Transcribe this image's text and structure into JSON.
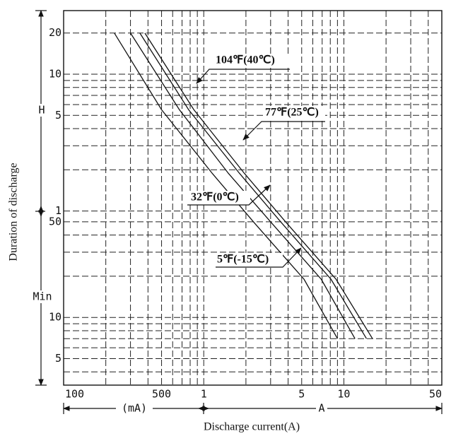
{
  "chart_data": {
    "type": "line",
    "x_label": "Discharge current(A)",
    "y_label": "Duration of discharge",
    "log_x": true,
    "log_y": true,
    "grid": true,
    "xlim": [
      0.1,
      50
    ],
    "ylim": [
      3.2,
      1750
    ],
    "xticks": [
      {
        "value": 0.1,
        "label": "100"
      },
      {
        "value": 0.5,
        "label": "500"
      },
      1,
      5,
      10,
      50
    ],
    "yticks": [
      {
        "value": 1200,
        "label": "20"
      },
      {
        "value": 600,
        "label": "10"
      },
      {
        "value": 300,
        "label": "5"
      },
      {
        "value": 60,
        "label": "1"
      },
      50,
      10,
      5
    ],
    "xgrid": [
      0.2,
      0.3,
      0.4,
      0.6,
      0.7,
      0.8,
      0.9,
      2,
      3,
      4,
      6,
      7,
      8,
      9,
      20,
      30,
      40
    ],
    "ygrid": [
      540,
      480,
      420,
      360,
      240,
      180,
      120,
      40,
      30,
      20,
      9,
      8,
      7,
      6,
      4
    ],
    "annotations": {
      "hours": "H",
      "minutes": "Min",
      "milliamps": "(mA)",
      "amps": "A"
    },
    "series": [
      {
        "name": "5℉(-15℃)",
        "color": "#111111",
        "x": [
          0.23,
          0.5,
          1.15,
          2.3,
          5.2,
          9
        ],
        "values": [
          1200,
          330,
          113,
          49,
          19,
          7
        ]
      },
      {
        "name": "32℉(0℃)",
        "color": "#111111",
        "x": [
          0.3,
          0.67,
          1.5,
          3.05,
          6.9,
          12
        ],
        "values": [
          1200,
          330,
          113,
          49,
          19,
          7
        ]
      },
      {
        "name": "77℉(25℃)",
        "color": "#111111",
        "x": [
          0.35,
          0.78,
          1.8,
          3.6,
          8.1,
          14.5
        ],
        "values": [
          1200,
          330,
          113,
          49,
          19,
          7
        ]
      },
      {
        "name": "104℉(40℃)",
        "color": "#111111",
        "x": [
          0.38,
          0.85,
          1.95,
          3.9,
          8.8,
          16
        ],
        "values": [
          1200,
          330,
          113,
          49,
          19,
          7
        ]
      }
    ]
  }
}
